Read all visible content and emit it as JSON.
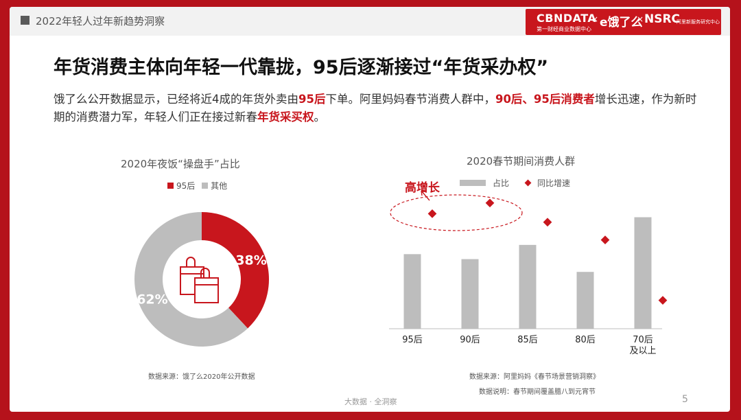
{
  "header": {
    "section": "2022年轻人过年新趋势洞察",
    "brand": {
      "cbndata": "CBNDATA",
      "cbndata_sub": "第一财经商业数据中心",
      "x1": "×",
      "eleme": "e饿了么",
      "x2": "×",
      "nsrc": "NSRC",
      "nsrc_sub": "阿里新服务研究中心"
    }
  },
  "headline": "年货消费主体向年轻一代靠拢，95后逐渐接过“年货采办权”",
  "paragraph": {
    "p1": "饿了么公开数据显示，已经将近4成的年货外卖由",
    "h1": "95后",
    "p2": "下单。阿里妈妈春节消费人群中，",
    "h2": "90后、95后消费者",
    "p3": "增长迅速，作为新时期的消费潜力军，年轻人们正在接过新春",
    "h3": "年货采买权",
    "p4": "。"
  },
  "donut": {
    "title": "2020年夜饭“操盘手”占比",
    "legend": [
      "95后",
      "其他"
    ],
    "source": "数据来源：饿了么2020年公开数据"
  },
  "bars": {
    "title": "2020春节期间消费人群",
    "legend": [
      "占比",
      "同比增速"
    ],
    "annotation": "高增长",
    "source": "数据来源：阿里妈妈《春节场景营销洞察》",
    "note": "数据说明：春节期间覆盖腊八到元宵节"
  },
  "footer": {
    "center": "大数据 · 全洞察",
    "page": "5"
  },
  "colors": {
    "accent": "#c8161d",
    "grey": "#bdbdbd"
  },
  "chart_data": [
    {
      "type": "pie",
      "donut": true,
      "title": "2020年夜饭“操盘手”占比",
      "categories": [
        "95后",
        "其他"
      ],
      "values": [
        38,
        62
      ],
      "labels": [
        "38%",
        "62%"
      ],
      "colors": [
        "#c8161d",
        "#bdbdbd"
      ],
      "center_icon": "shopping-bags-icon"
    },
    {
      "type": "bar",
      "title": "2020春节期间消费人群",
      "categories": [
        "95后",
        "90后",
        "85后",
        "80后",
        "70后\n及以上"
      ],
      "series": [
        {
          "name": "占比",
          "kind": "bar",
          "values": [
            105,
            98,
            118,
            80,
            157
          ],
          "color": "#bdbdbd"
        },
        {
          "name": "同比增速",
          "kind": "diamond",
          "values": [
            162,
            177,
            150,
            125,
            40
          ],
          "color": "#c8161d"
        }
      ],
      "value_scale": "relative (no axis printed)",
      "ylim": [
        0,
        200
      ],
      "grid": false,
      "legend": "top"
    }
  ]
}
